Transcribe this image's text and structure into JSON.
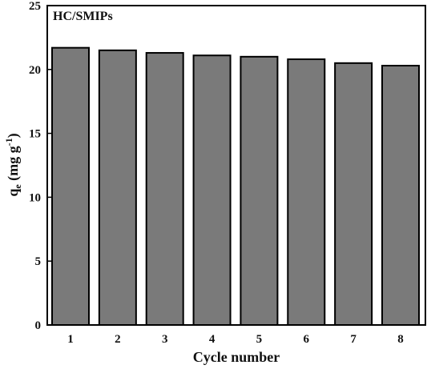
{
  "chart_data": {
    "type": "bar",
    "title": "",
    "annotation": "HC/SMIPs",
    "categories": [
      "1",
      "2",
      "3",
      "4",
      "5",
      "6",
      "7",
      "8"
    ],
    "values": [
      21.7,
      21.5,
      21.3,
      21.1,
      21.0,
      20.8,
      20.5,
      20.3
    ],
    "xlabel": "Cycle number",
    "ylabel": {
      "main": "q",
      "sub": "e",
      "unit_open": " (mg g",
      "sup": "-1",
      "unit_close": ")"
    },
    "ylim": [
      0,
      25
    ],
    "yticks": [
      "0",
      "5",
      "10",
      "15",
      "20",
      "25"
    ],
    "grid": false,
    "legend": "none",
    "bar_color": "#7a7a7a",
    "edge_color": "#000000"
  }
}
